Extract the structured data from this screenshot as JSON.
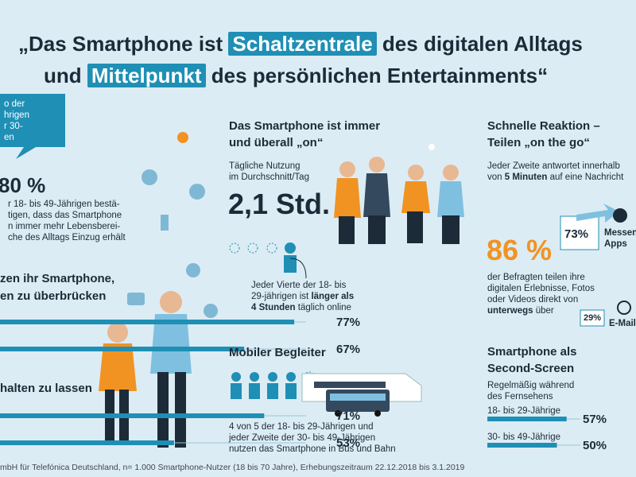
{
  "title": {
    "line1": [
      "„Das Smartphone ist ",
      "Schaltzentrale",
      " des digitalen Alltags"
    ],
    "line2": [
      "und ",
      "Mittelpunkt",
      " des persönlichen Entertainments“"
    ]
  },
  "left": {
    "bubble": [
      "o der",
      "hrigen",
      "r 30-",
      "en"
    ],
    "stat": "80 %",
    "text": [
      "r 18- bis 49-Jährigen bestä-",
      "tigen, dass das Smartphone",
      "n immer mehr Lebensberei-",
      "che des Alltags Einzug erhält"
    ],
    "section1": {
      "heading": [
        "zen ihr Smartphone,",
        "en zu überbrücken"
      ],
      "bars": {
        "values": [
          77,
          67
        ],
        "value_labels": [
          "77%",
          "67%"
        ]
      }
    },
    "section2": {
      "heading": [
        "halten zu lassen"
      ],
      "bars": {
        "values": [
          71,
          53
        ],
        "value_labels": [
          "71%",
          "53%"
        ]
      }
    }
  },
  "middle": {
    "heading": [
      "Das Smartphone ist immer",
      "und überall „on“"
    ],
    "usage": [
      "Tägliche Nutzung",
      "im Durchschnitt/Tag"
    ],
    "stat": "2,1 Std.",
    "quarter": {
      "line1": "Jeder Vierte der 18- bis",
      "line2a": "29-jährigen ist ",
      "line2b": "länger als",
      "line3a": "4 Stunden",
      "line3b": " täglich online"
    },
    "mobile_heading": "Mobiler Begleiter",
    "mobile_text": [
      "4 von 5 der 18- bis 29-Jährigen und",
      "jeder Zweite der 30- bis 49-Jährigen",
      "nutzen das Smartphone in Bus und Bahn"
    ]
  },
  "right": {
    "heading": [
      "Schnelle Reaktion –",
      "Teilen „on the go“"
    ],
    "reply": {
      "line1": "Jeder Zweite antwortet innerhalb",
      "line2a": "von ",
      "line2b": "5 Minuten",
      "line2c": " auf eine Nachricht"
    },
    "messenger": {
      "label": "73%",
      "name": [
        "Messen",
        "Apps"
      ]
    },
    "stat": "86 %",
    "share_text": [
      "der Befragten teilen ihre",
      "digitalen Erlebnisse, Fotos",
      "oder Videos direkt von"
    ],
    "share_last": {
      "bold": "unterwegs",
      "rest": " über"
    },
    "email": {
      "label": "29%",
      "name": "E-Mail"
    },
    "second_screen": {
      "heading": [
        "Smartphone als",
        "Second-Screen"
      ],
      "sub": [
        "Regelmäßig während",
        "des Fernsehens"
      ],
      "bars": {
        "categories": [
          "18- bis 29-Jährige",
          "30- bis 49-Jährige"
        ],
        "values": [
          57,
          50
        ],
        "value_labels": [
          "57%",
          "50%"
        ]
      }
    }
  },
  "footer": "mbH für Telefónica Deutschland, n= 1.000 Smartphone-Nutzer (18 bis 70 Jahre), Erhebungszeitraum 22.12.2018 bis 3.1.2019"
}
